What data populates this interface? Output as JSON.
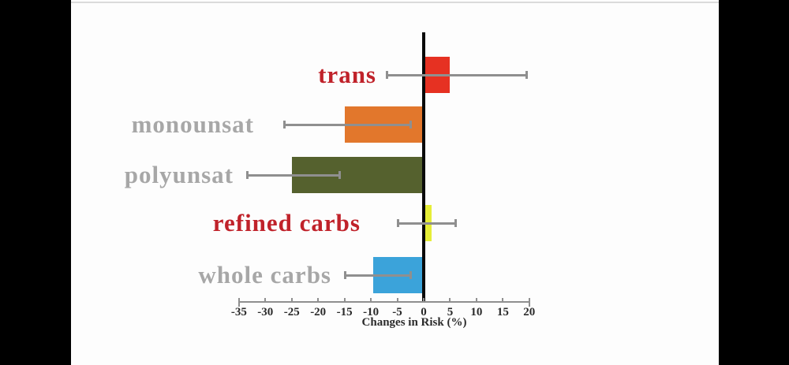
{
  "scene": {
    "letterbox_color": "#000000",
    "panel_background": "#fdfdfd"
  },
  "chart_data": {
    "type": "bar",
    "orientation": "horizontal",
    "xlabel": "Changes in Risk (%)",
    "xlim": [
      -37,
      21
    ],
    "x_ticks": [
      -35,
      -30,
      -25,
      -20,
      -15,
      -10,
      -5,
      0,
      5,
      10,
      15,
      20
    ],
    "grid": false,
    "legend": "none",
    "axis_line_color": "#8f8f8f",
    "zero_line_color": "#0a0a0a",
    "error_bar_color": "#8f8f8f",
    "series": [
      {
        "label": "trans",
        "value": 5,
        "ci_low": -7,
        "ci_high": 19.5,
        "bar_color": "#e63122",
        "label_color": "#c0222a"
      },
      {
        "label": "monounsat",
        "value": -15,
        "ci_low": -26.5,
        "ci_high": -2.5,
        "bar_color": "#e2772c",
        "label_color": "#a7a7a7"
      },
      {
        "label": "polyunsat",
        "value": -25,
        "ci_low": -33.5,
        "ci_high": -16,
        "bar_color": "#55612e",
        "label_color": "#a7a7a7"
      },
      {
        "label": "refined carbs",
        "value": 1.5,
        "ci_low": -5,
        "ci_high": 6,
        "bar_color": "#e6ee38",
        "label_color": "#c0222a"
      },
      {
        "label": "whole carbs",
        "value": -9.5,
        "ci_low": -15,
        "ci_high": -2.5,
        "bar_color": "#3ba3da",
        "label_color": "#a7a7a7"
      }
    ]
  }
}
